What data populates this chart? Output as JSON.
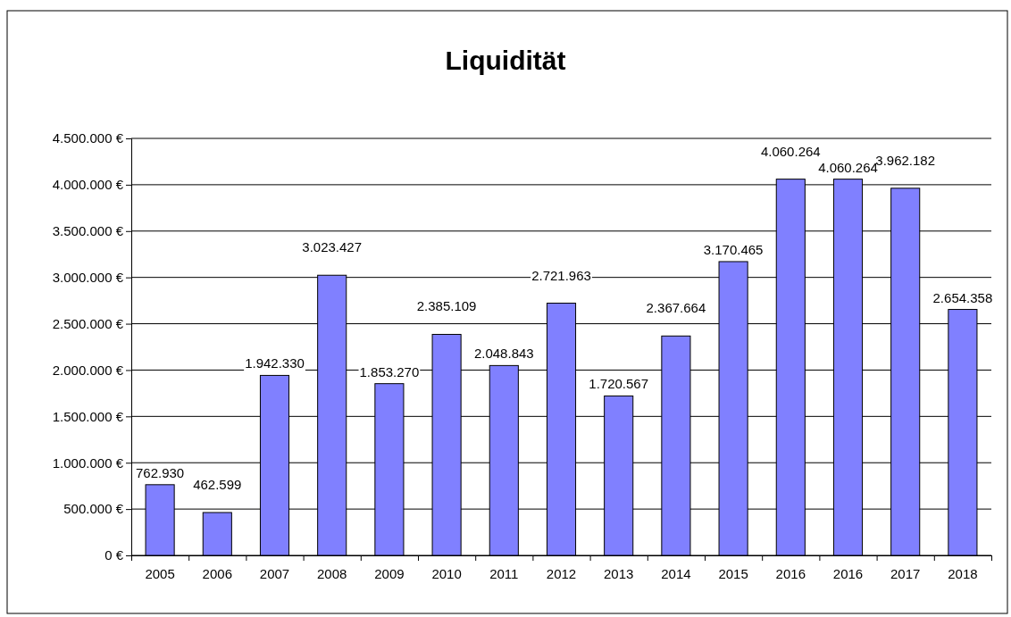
{
  "chart_data": {
    "type": "bar",
    "title": "Liquidität",
    "categories": [
      "2005",
      "2006",
      "2007",
      "2008",
      "2009",
      "2010",
      "2011",
      "2012",
      "2013",
      "2014",
      "2015",
      "2016",
      "2016",
      "2017",
      "2018"
    ],
    "values": [
      762930,
      462599,
      1942330,
      3023427,
      1853270,
      2385109,
      2048843,
      2721963,
      1720567,
      2367664,
      3170465,
      4060264,
      4060264,
      3962182,
      2654358
    ],
    "value_labels": [
      "762.930",
      "462.599",
      "1.942.330",
      "3.023.427",
      "1.853.270",
      "2.385.109",
      "2.048.843",
      "2.721.963",
      "1.720.567",
      "2.367.664",
      "3.170.465",
      "4.060.264",
      "4.060.264",
      "3.962.182",
      "2.654.358"
    ],
    "color": "#8080ff",
    "ylim": [
      0,
      4500000
    ],
    "yticks": [
      {
        "value": 0,
        "label": "0 €"
      },
      {
        "value": 500000,
        "label": "500.000 €"
      },
      {
        "value": 1000000,
        "label": "1.000.000 €"
      },
      {
        "value": 1500000,
        "label": "1.500.000 €"
      },
      {
        "value": 2000000,
        "label": "2.000.000 €"
      },
      {
        "value": 2500000,
        "label": "2.500.000 €"
      },
      {
        "value": 3000000,
        "label": "3.000.000 €"
      },
      {
        "value": 3500000,
        "label": "3.500.000 €"
      },
      {
        "value": 4000000,
        "label": "4.000.000 €"
      },
      {
        "value": 4500000,
        "label": "4.500.000 €"
      }
    ],
    "grid": "y"
  }
}
